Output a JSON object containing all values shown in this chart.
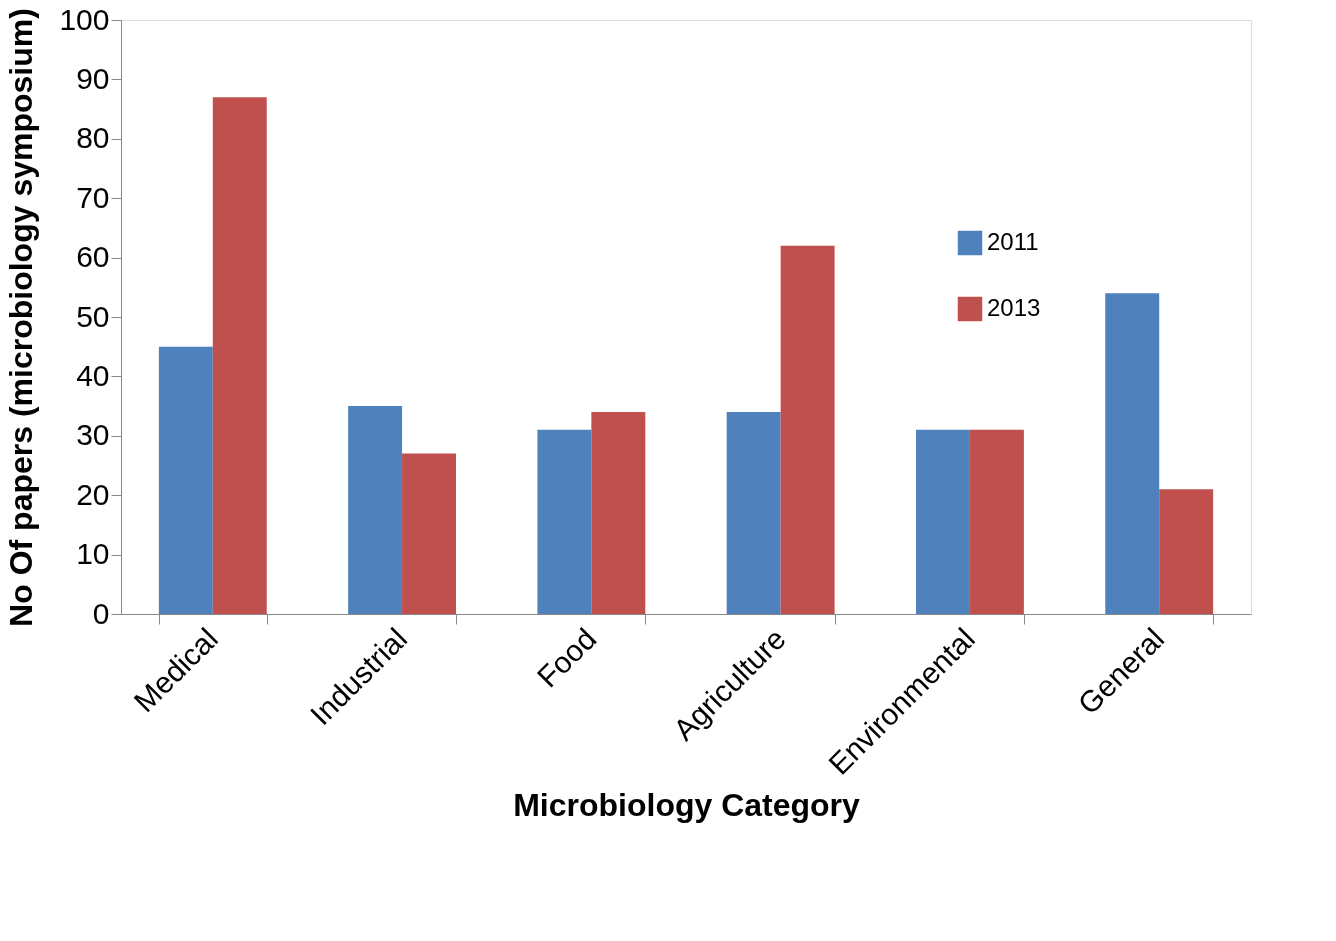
{
  "chart_data": {
    "type": "bar",
    "xlabel": "Microbiology Category",
    "ylabel": "No Of papers (microbiology symposium)",
    "categories": [
      "Medical",
      "Industrial",
      "Food",
      "Agriculture",
      "Environmental",
      "General"
    ],
    "series": [
      {
        "name": "2011",
        "color": "#4f81bd",
        "values": [
          45,
          35,
          31,
          34,
          31,
          54
        ]
      },
      {
        "name": "2013",
        "color": "#c0504d",
        "values": [
          87,
          27,
          34,
          62,
          31,
          21
        ]
      }
    ],
    "ylim": [
      0,
      100
    ],
    "yticks": [
      0,
      10,
      20,
      30,
      40,
      50,
      60,
      70,
      80,
      90,
      100
    ],
    "grid": false,
    "legend": "top right"
  }
}
